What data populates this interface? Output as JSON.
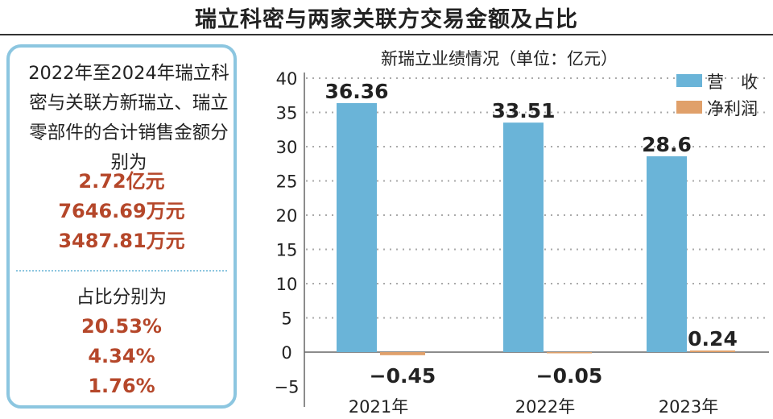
{
  "title": "瑞立科密与两家关联方交易金额及占比",
  "panel": {
    "description": "2022年至2024年瑞立科密与关联方新瑞立、瑞立零部件的合计销售金额分别为",
    "amounts": [
      "2.72亿元",
      "7646.69万元",
      "3487.81万元"
    ],
    "share_label": "占比分别为",
    "shares": [
      "20.53%",
      "4.34%",
      "1.76%"
    ]
  },
  "colors": {
    "revenue": "#6ab4d8",
    "profit": "#e0a06a",
    "highlight": "#b5472a",
    "border": "#8cc6e0"
  },
  "chart_data": {
    "type": "bar",
    "title": "新瑞立业绩情况（单位：亿元）",
    "categories": [
      "2021年",
      "2022年",
      "2023年"
    ],
    "series": [
      {
        "name": "营　收",
        "values": [
          36.36,
          33.51,
          28.6
        ],
        "labels": [
          "36.36",
          "33.51",
          "28.6"
        ]
      },
      {
        "name": "净利润",
        "values": [
          -0.45,
          -0.05,
          0.24
        ],
        "labels": [
          "−0.45",
          "−0.05",
          "0.24"
        ]
      }
    ],
    "yticks": [
      "40",
      "35",
      "30",
      "25",
      "20",
      "15",
      "10",
      "5",
      "0",
      "−5"
    ],
    "ylim": [
      -5,
      40
    ],
    "grid": true,
    "legend": "top-right"
  }
}
